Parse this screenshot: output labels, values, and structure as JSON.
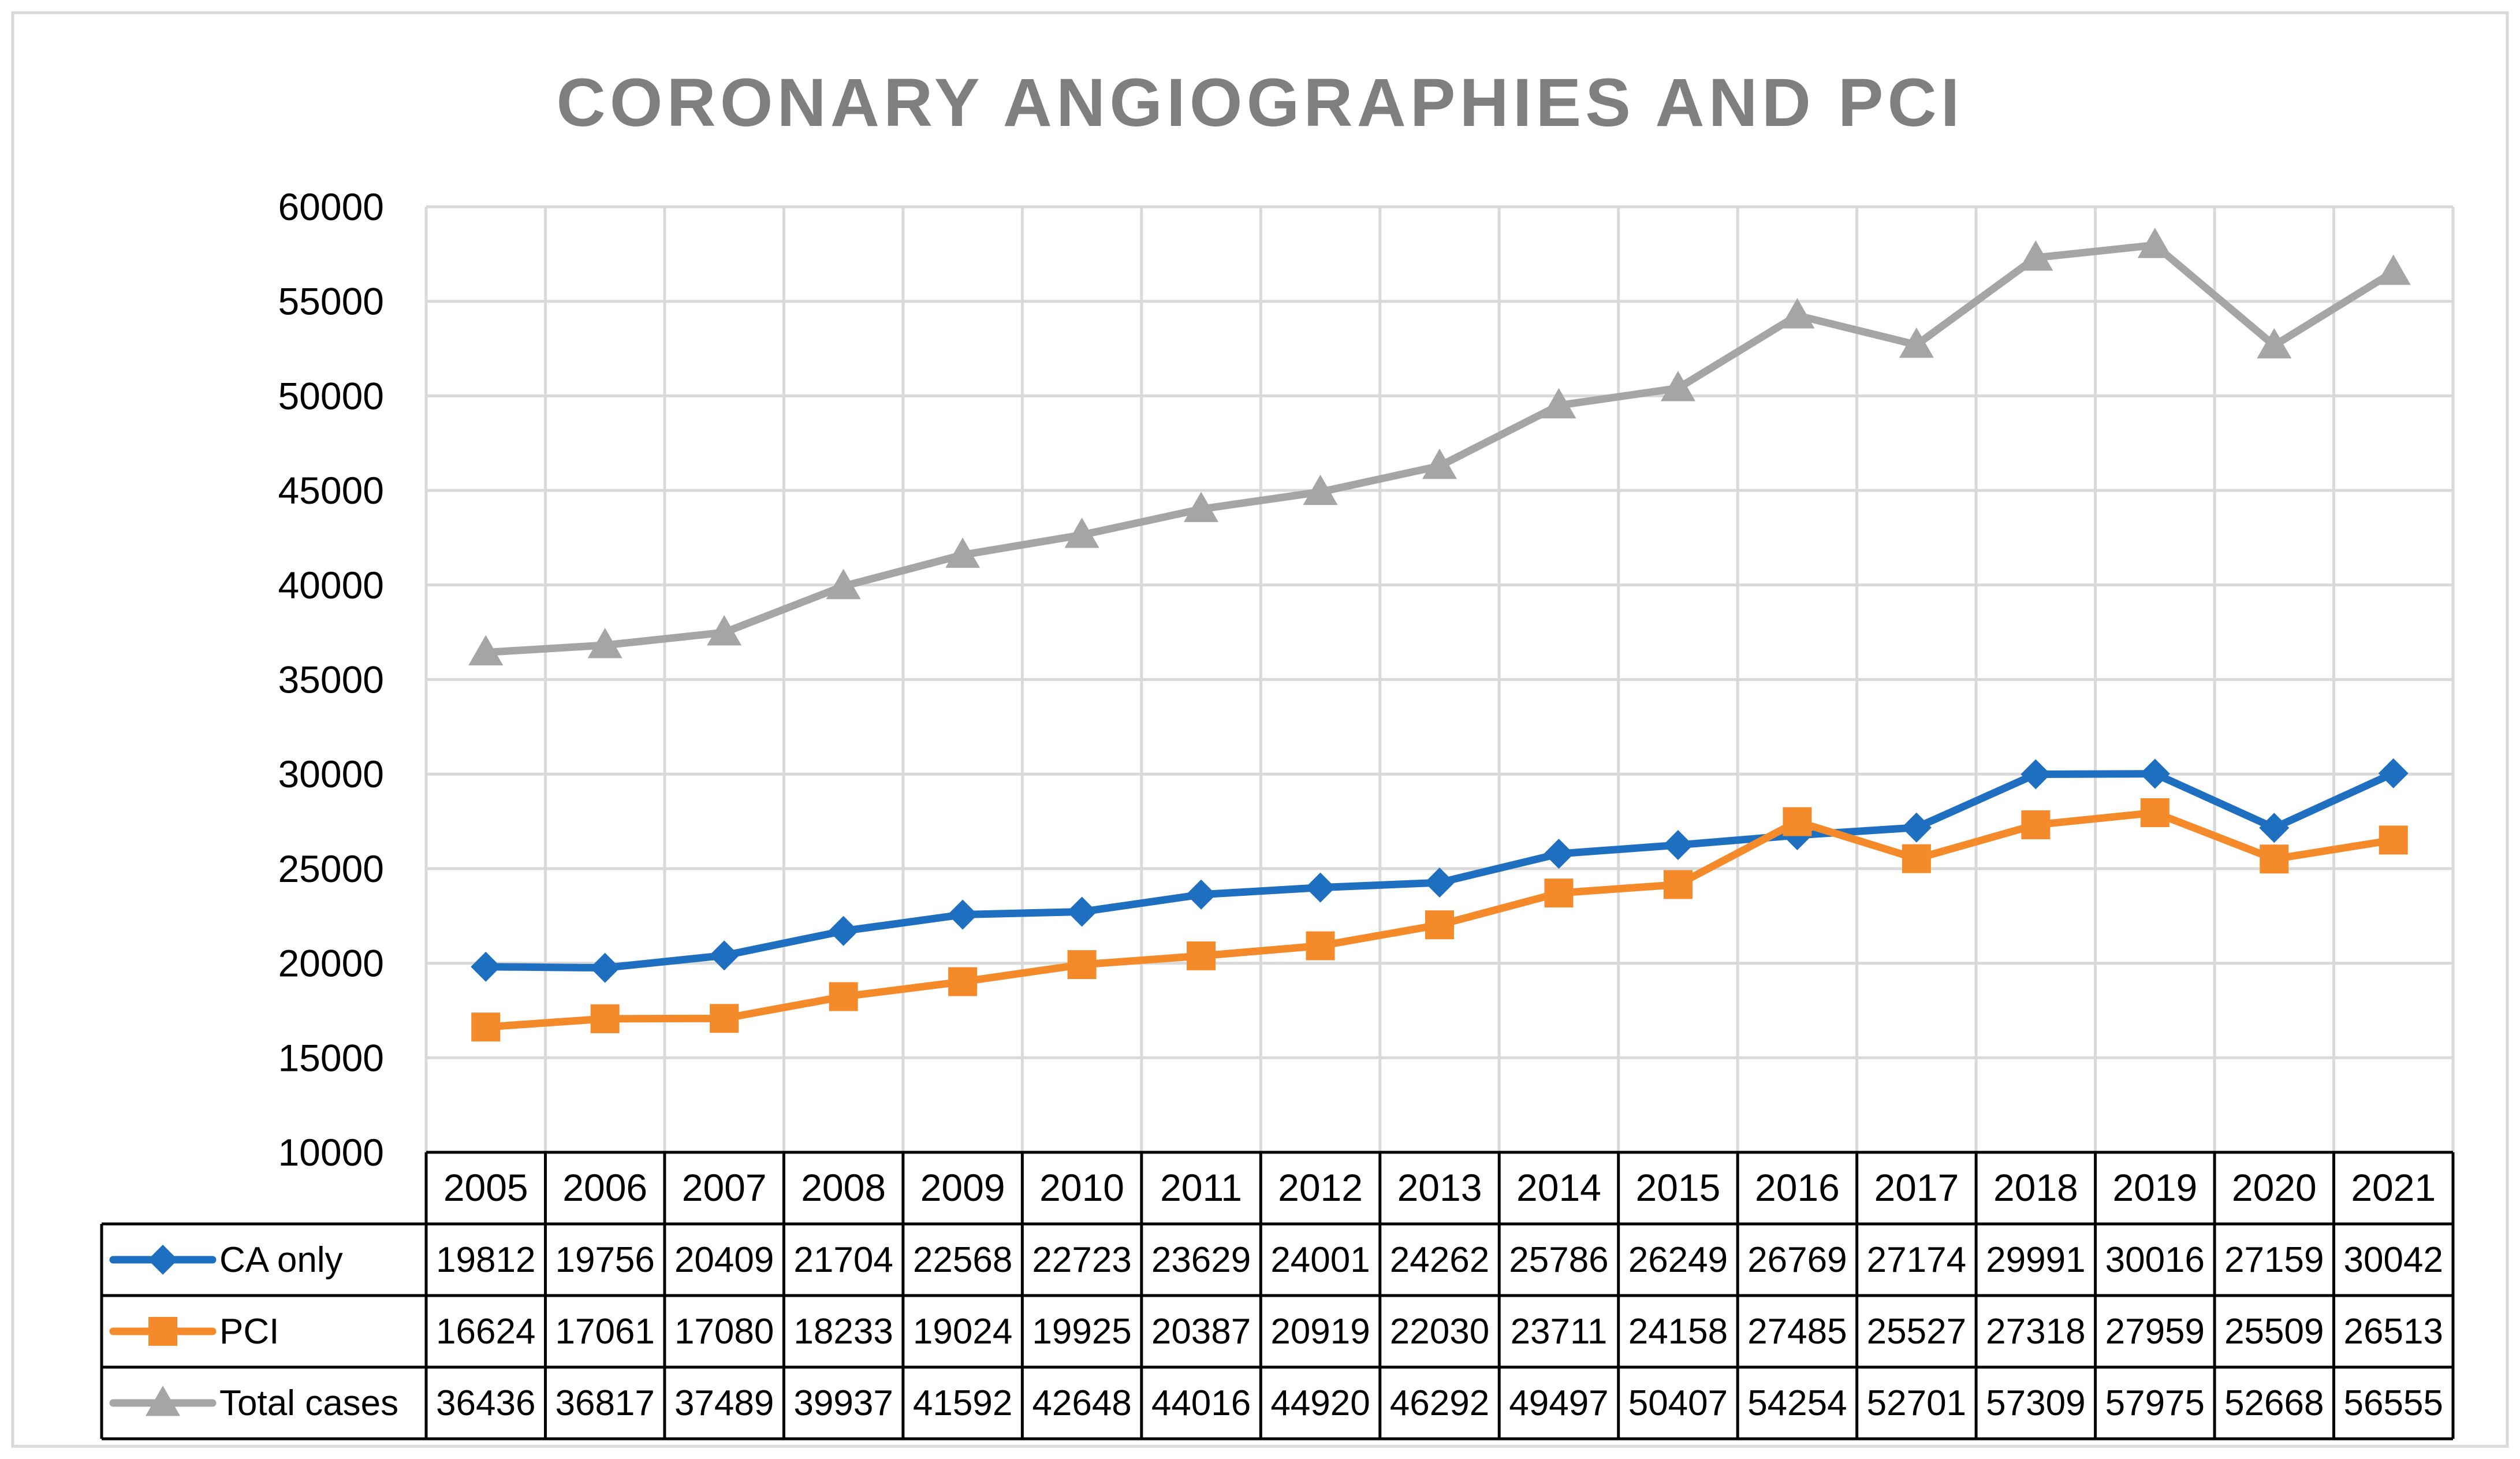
{
  "chart_data": {
    "type": "line",
    "title": "CORONARY ANGIOGRAPHIES AND PCI",
    "categories": [
      "2005",
      "2006",
      "2007",
      "2008",
      "2009",
      "2010",
      "2011",
      "2012",
      "2013",
      "2014",
      "2015",
      "2016",
      "2017",
      "2018",
      "2019",
      "2020",
      "2021"
    ],
    "ylim": [
      10000,
      60000
    ],
    "yticks": [
      "60000",
      "55000",
      "50000",
      "45000",
      "40000",
      "35000",
      "30000",
      "25000",
      "20000",
      "15000",
      "10000"
    ],
    "grid": true,
    "data_table": true,
    "series": [
      {
        "name": "CA only",
        "color": "#1f6fc0",
        "marker": "diamond",
        "values": [
          19812,
          19756,
          20409,
          21704,
          22568,
          22723,
          23629,
          24001,
          24262,
          25786,
          26249,
          26769,
          27174,
          29991,
          30016,
          27159,
          30042
        ]
      },
      {
        "name": "PCI",
        "color": "#f58a2a",
        "marker": "square",
        "values": [
          16624,
          17061,
          17080,
          18233,
          19024,
          19925,
          20387,
          20919,
          22030,
          23711,
          24158,
          27485,
          25527,
          27318,
          27959,
          25509,
          26513
        ]
      },
      {
        "name": "Total cases",
        "color": "#a5a5a5",
        "marker": "triangle",
        "values": [
          36436,
          36817,
          37489,
          39937,
          41592,
          42648,
          44016,
          44920,
          46292,
          49497,
          50407,
          54254,
          52701,
          57309,
          57975,
          52668,
          56555
        ]
      }
    ]
  }
}
